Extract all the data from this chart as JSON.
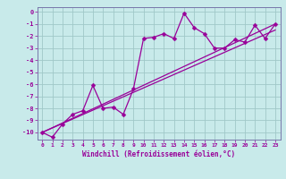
{
  "xlabel": "Windchill (Refroidissement éolien,°C)",
  "bg_color": "#c8eaea",
  "grid_color": "#a0c8c8",
  "line_color": "#990099",
  "spine_color": "#7777aa",
  "xlim": [
    -0.5,
    23.5
  ],
  "ylim": [
    -10.6,
    0.4
  ],
  "xticks": [
    0,
    1,
    2,
    3,
    4,
    5,
    6,
    7,
    8,
    9,
    10,
    11,
    12,
    13,
    14,
    15,
    16,
    17,
    18,
    19,
    20,
    21,
    22,
    23
  ],
  "yticks": [
    0,
    -1,
    -2,
    -3,
    -4,
    -5,
    -6,
    -7,
    -8,
    -9,
    -10
  ],
  "series1_x": [
    0,
    1,
    2,
    3,
    4,
    5,
    6,
    7,
    8,
    9,
    10,
    11,
    12,
    13,
    14,
    15,
    16,
    17,
    18,
    19,
    20,
    21,
    22,
    23
  ],
  "series1_y": [
    -10.0,
    -10.4,
    -9.3,
    -8.5,
    -8.2,
    -6.1,
    -8.0,
    -7.9,
    -8.5,
    -6.4,
    -2.2,
    -2.1,
    -1.8,
    -2.2,
    -0.1,
    -1.3,
    -1.8,
    -3.0,
    -3.0,
    -2.3,
    -2.5,
    -1.1,
    -2.2,
    -1.0
  ],
  "series2_x": [
    0,
    23
  ],
  "series2_y": [
    -10.0,
    -1.0
  ],
  "series3_x": [
    0,
    23
  ],
  "series3_y": [
    -10.0,
    -1.5
  ],
  "markersize": 2.5,
  "linewidth": 0.9
}
